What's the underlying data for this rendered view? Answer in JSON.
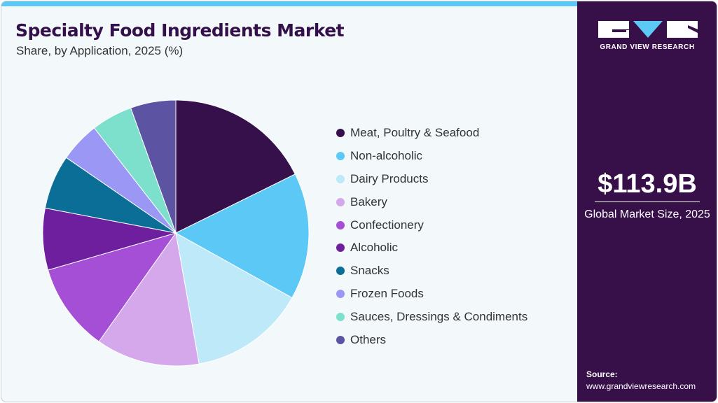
{
  "title": "Specialty Food Ingredients Market",
  "subtitle": "Share, by Application, 2025 (%)",
  "brand": {
    "name": "GRAND VIEW RESEARCH"
  },
  "market_size": {
    "value": "$113.9B",
    "label": "Global Market Size, 2025"
  },
  "source": {
    "label": "Source:",
    "url": "www.grandviewresearch.com"
  },
  "colors": {
    "panel": "#370f49",
    "accent": "#5bc8f5",
    "background": "#f3f8fb"
  },
  "chart_data": {
    "type": "pie",
    "title": "Specialty Food Ingredients Market",
    "subtitle": "Share, by Application, 2025 (%)",
    "start_angle": "12 o'clock",
    "direction": "clockwise",
    "legend_position": "right",
    "categories": [
      "Meat, Poultry & Seafood",
      "Non-alcoholic",
      "Dairy Products",
      "Bakery",
      "Confectionery",
      "Alcoholic",
      "Snacks",
      "Frozen Foods",
      "Sauces, Dressings & Condiments",
      "Others"
    ],
    "values": [
      17.7,
      15.4,
      14.1,
      12.6,
      10.7,
      7.5,
      6.6,
      4.9,
      5.0,
      5.5
    ],
    "colors": [
      "#35104a",
      "#5bc8f5",
      "#bde9f9",
      "#d4a8ea",
      "#a54fd6",
      "#6e1f9e",
      "#0b6e96",
      "#9b98f5",
      "#7de0cc",
      "#5c53a3"
    ]
  }
}
